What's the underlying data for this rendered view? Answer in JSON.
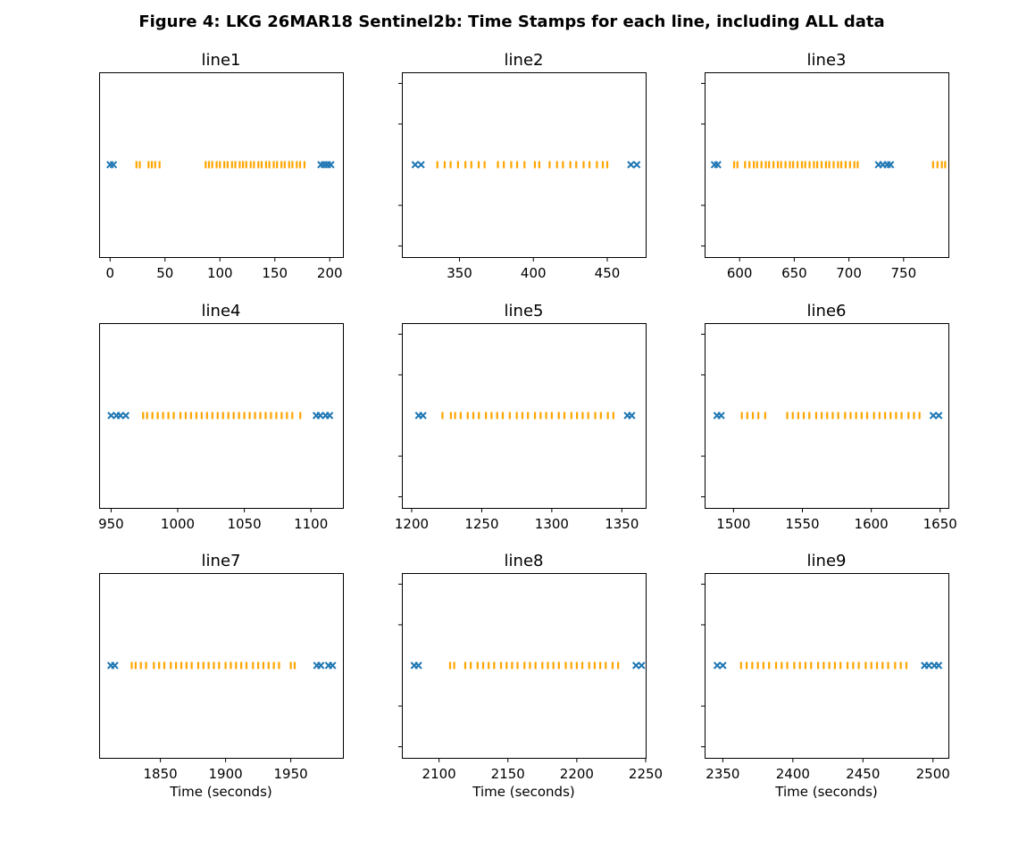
{
  "figure": {
    "title": "Figure 4: LKG 26MAR18  Sentinel2b: Time Stamps for each line, including ALL data"
  },
  "colors": {
    "excluded": "#1f77b4",
    "included": "#ffa500"
  },
  "chart_data": [
    {
      "type": "scatter",
      "title": "line1",
      "xlabel": "",
      "xlim": [
        -10,
        212
      ],
      "xticks": [
        0,
        50,
        100,
        150,
        200
      ],
      "excluded_x": [
        0,
        3,
        192,
        195,
        198,
        201
      ],
      "included_x": [
        24,
        27,
        35,
        38,
        41,
        45,
        87,
        90,
        93,
        97,
        100,
        104,
        107,
        111,
        114,
        118,
        121,
        124,
        128,
        131,
        135,
        138,
        142,
        145,
        149,
        152,
        156,
        159,
        163,
        166,
        170,
        173,
        177
      ]
    },
    {
      "type": "scatter",
      "title": "line2",
      "xlabel": "",
      "xlim": [
        311,
        476
      ],
      "xticks": [
        350,
        400,
        450
      ],
      "excluded_x": [
        320,
        324,
        466,
        470
      ],
      "included_x": [
        335,
        340,
        344,
        349,
        354,
        358,
        363,
        367,
        376,
        380,
        385,
        389,
        394,
        401,
        404,
        411,
        416,
        420,
        425,
        429,
        434,
        438,
        443,
        447,
        450
      ]
    },
    {
      "type": "scatter",
      "title": "line3",
      "xlabel": "",
      "xlim": [
        568,
        791
      ],
      "xticks": [
        600,
        650,
        700,
        750
      ],
      "excluded_x": [
        577,
        580,
        727,
        731,
        735,
        738
      ],
      "included_x": [
        595,
        598,
        605,
        609,
        613,
        616,
        620,
        624,
        627,
        631,
        635,
        638,
        642,
        646,
        649,
        653,
        657,
        660,
        664,
        668,
        671,
        675,
        679,
        682,
        686,
        690,
        693,
        697,
        701,
        705,
        708,
        777,
        781,
        785,
        788
      ]
    },
    {
      "type": "scatter",
      "title": "line4",
      "xlabel": "",
      "xlim": [
        941,
        1124
      ],
      "xticks": [
        950,
        1000,
        1050,
        1100
      ],
      "excluded_x": [
        950,
        954,
        957,
        961,
        1104,
        1107,
        1111,
        1114
      ],
      "included_x": [
        974,
        977,
        981,
        985,
        989,
        993,
        997,
        1002,
        1006,
        1010,
        1014,
        1018,
        1022,
        1026,
        1030,
        1034,
        1038,
        1042,
        1046,
        1050,
        1054,
        1058,
        1062,
        1066,
        1070,
        1074,
        1078,
        1082,
        1086,
        1092
      ]
    },
    {
      "type": "scatter",
      "title": "line5",
      "xlabel": "",
      "xlim": [
        1193,
        1367
      ],
      "xticks": [
        1200,
        1250,
        1300,
        1350
      ],
      "excluded_x": [
        1205,
        1208,
        1354,
        1357
      ],
      "included_x": [
        1222,
        1228,
        1231,
        1235,
        1240,
        1244,
        1248,
        1253,
        1257,
        1261,
        1265,
        1270,
        1275,
        1279,
        1283,
        1288,
        1292,
        1296,
        1300,
        1305,
        1309,
        1314,
        1318,
        1322,
        1326,
        1331,
        1335,
        1340,
        1344
      ]
    },
    {
      "type": "scatter",
      "title": "line6",
      "xlabel": "",
      "xlim": [
        1479,
        1656
      ],
      "xticks": [
        1500,
        1550,
        1600,
        1650
      ],
      "excluded_x": [
        1488,
        1491,
        1645,
        1649
      ],
      "included_x": [
        1506,
        1510,
        1514,
        1518,
        1523,
        1539,
        1543,
        1547,
        1551,
        1555,
        1560,
        1564,
        1568,
        1572,
        1576,
        1581,
        1585,
        1589,
        1593,
        1597,
        1602,
        1606,
        1610,
        1614,
        1618,
        1622,
        1627,
        1631,
        1635
      ]
    },
    {
      "type": "scatter",
      "title": "line7",
      "xlabel": "Time (seconds)",
      "xlim": [
        1803,
        1990
      ],
      "xticks": [
        1850,
        1900,
        1950
      ],
      "excluded_x": [
        1812,
        1815,
        1970,
        1973,
        1979,
        1982
      ],
      "included_x": [
        1828,
        1831,
        1835,
        1839,
        1845,
        1849,
        1853,
        1858,
        1862,
        1866,
        1870,
        1874,
        1879,
        1883,
        1887,
        1891,
        1895,
        1900,
        1904,
        1908,
        1912,
        1916,
        1921,
        1925,
        1929,
        1933,
        1937,
        1941,
        1950,
        1953
      ]
    },
    {
      "type": "scatter",
      "title": "line8",
      "xlabel": "Time (seconds)",
      "xlim": [
        2073,
        2250
      ],
      "xticks": [
        2100,
        2150,
        2200,
        2250
      ],
      "excluded_x": [
        2082,
        2085,
        2243,
        2247
      ],
      "included_x": [
        2108,
        2111,
        2119,
        2123,
        2128,
        2132,
        2136,
        2140,
        2145,
        2149,
        2153,
        2157,
        2162,
        2166,
        2170,
        2175,
        2179,
        2183,
        2187,
        2192,
        2196,
        2200,
        2204,
        2209,
        2213,
        2217,
        2221,
        2226,
        2230
      ]
    },
    {
      "type": "scatter",
      "title": "line9",
      "xlabel": "Time (seconds)",
      "xlim": [
        2337,
        2511
      ],
      "xticks": [
        2350,
        2400,
        2450,
        2500
      ],
      "excluded_x": [
        2346,
        2350,
        2494,
        2497,
        2501,
        2504
      ],
      "included_x": [
        2363,
        2367,
        2371,
        2375,
        2379,
        2383,
        2388,
        2392,
        2396,
        2401,
        2405,
        2409,
        2413,
        2418,
        2422,
        2426,
        2430,
        2434,
        2439,
        2443,
        2447,
        2452,
        2456,
        2460,
        2464,
        2468,
        2473,
        2477,
        2481
      ]
    }
  ]
}
